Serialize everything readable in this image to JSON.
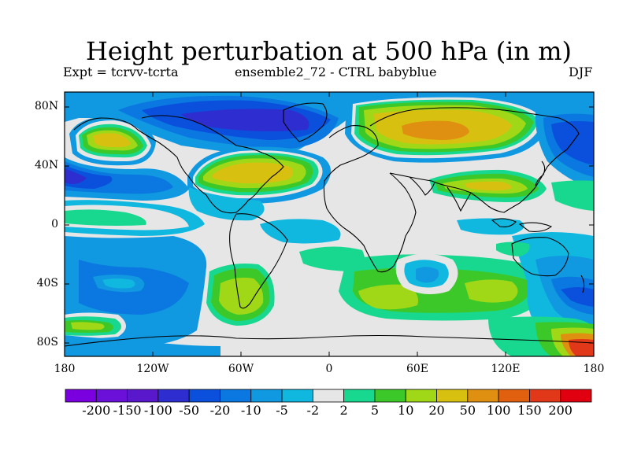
{
  "title": "Height perturbation at 500 hPa (in m)",
  "subtitle_left": "Expt = tcrvv-tcrta",
  "subtitle_center": "ensemble2_72 - CTRL babyblue",
  "season": "DJF",
  "map": {
    "lat_range": [
      -90,
      90
    ],
    "lon_range": [
      -180,
      180
    ],
    "lat_ticks": [
      "80N",
      "40N",
      "0",
      "40S",
      "80S"
    ],
    "lon_ticks": [
      "180",
      "120W",
      "60W",
      "0",
      "60E",
      "120E",
      "180"
    ]
  },
  "colorbar": {
    "labels": [
      "-200",
      "-150",
      "-100",
      "-50",
      "-20",
      "-10",
      "-5",
      "-2",
      "2",
      "5",
      "10",
      "20",
      "50",
      "100",
      "150",
      "200"
    ],
    "colors": [
      "#7a00e0",
      "#6a10d8",
      "#5a18cc",
      "#2e2ed0",
      "#0a50dc",
      "#0a78e0",
      "#1098e0",
      "#10b8e0",
      "#e6e6e6",
      "#18d890",
      "#3cc828",
      "#a0d818",
      "#d8c010",
      "#e09010",
      "#e06010",
      "#e03818",
      "#e00010"
    ]
  }
}
